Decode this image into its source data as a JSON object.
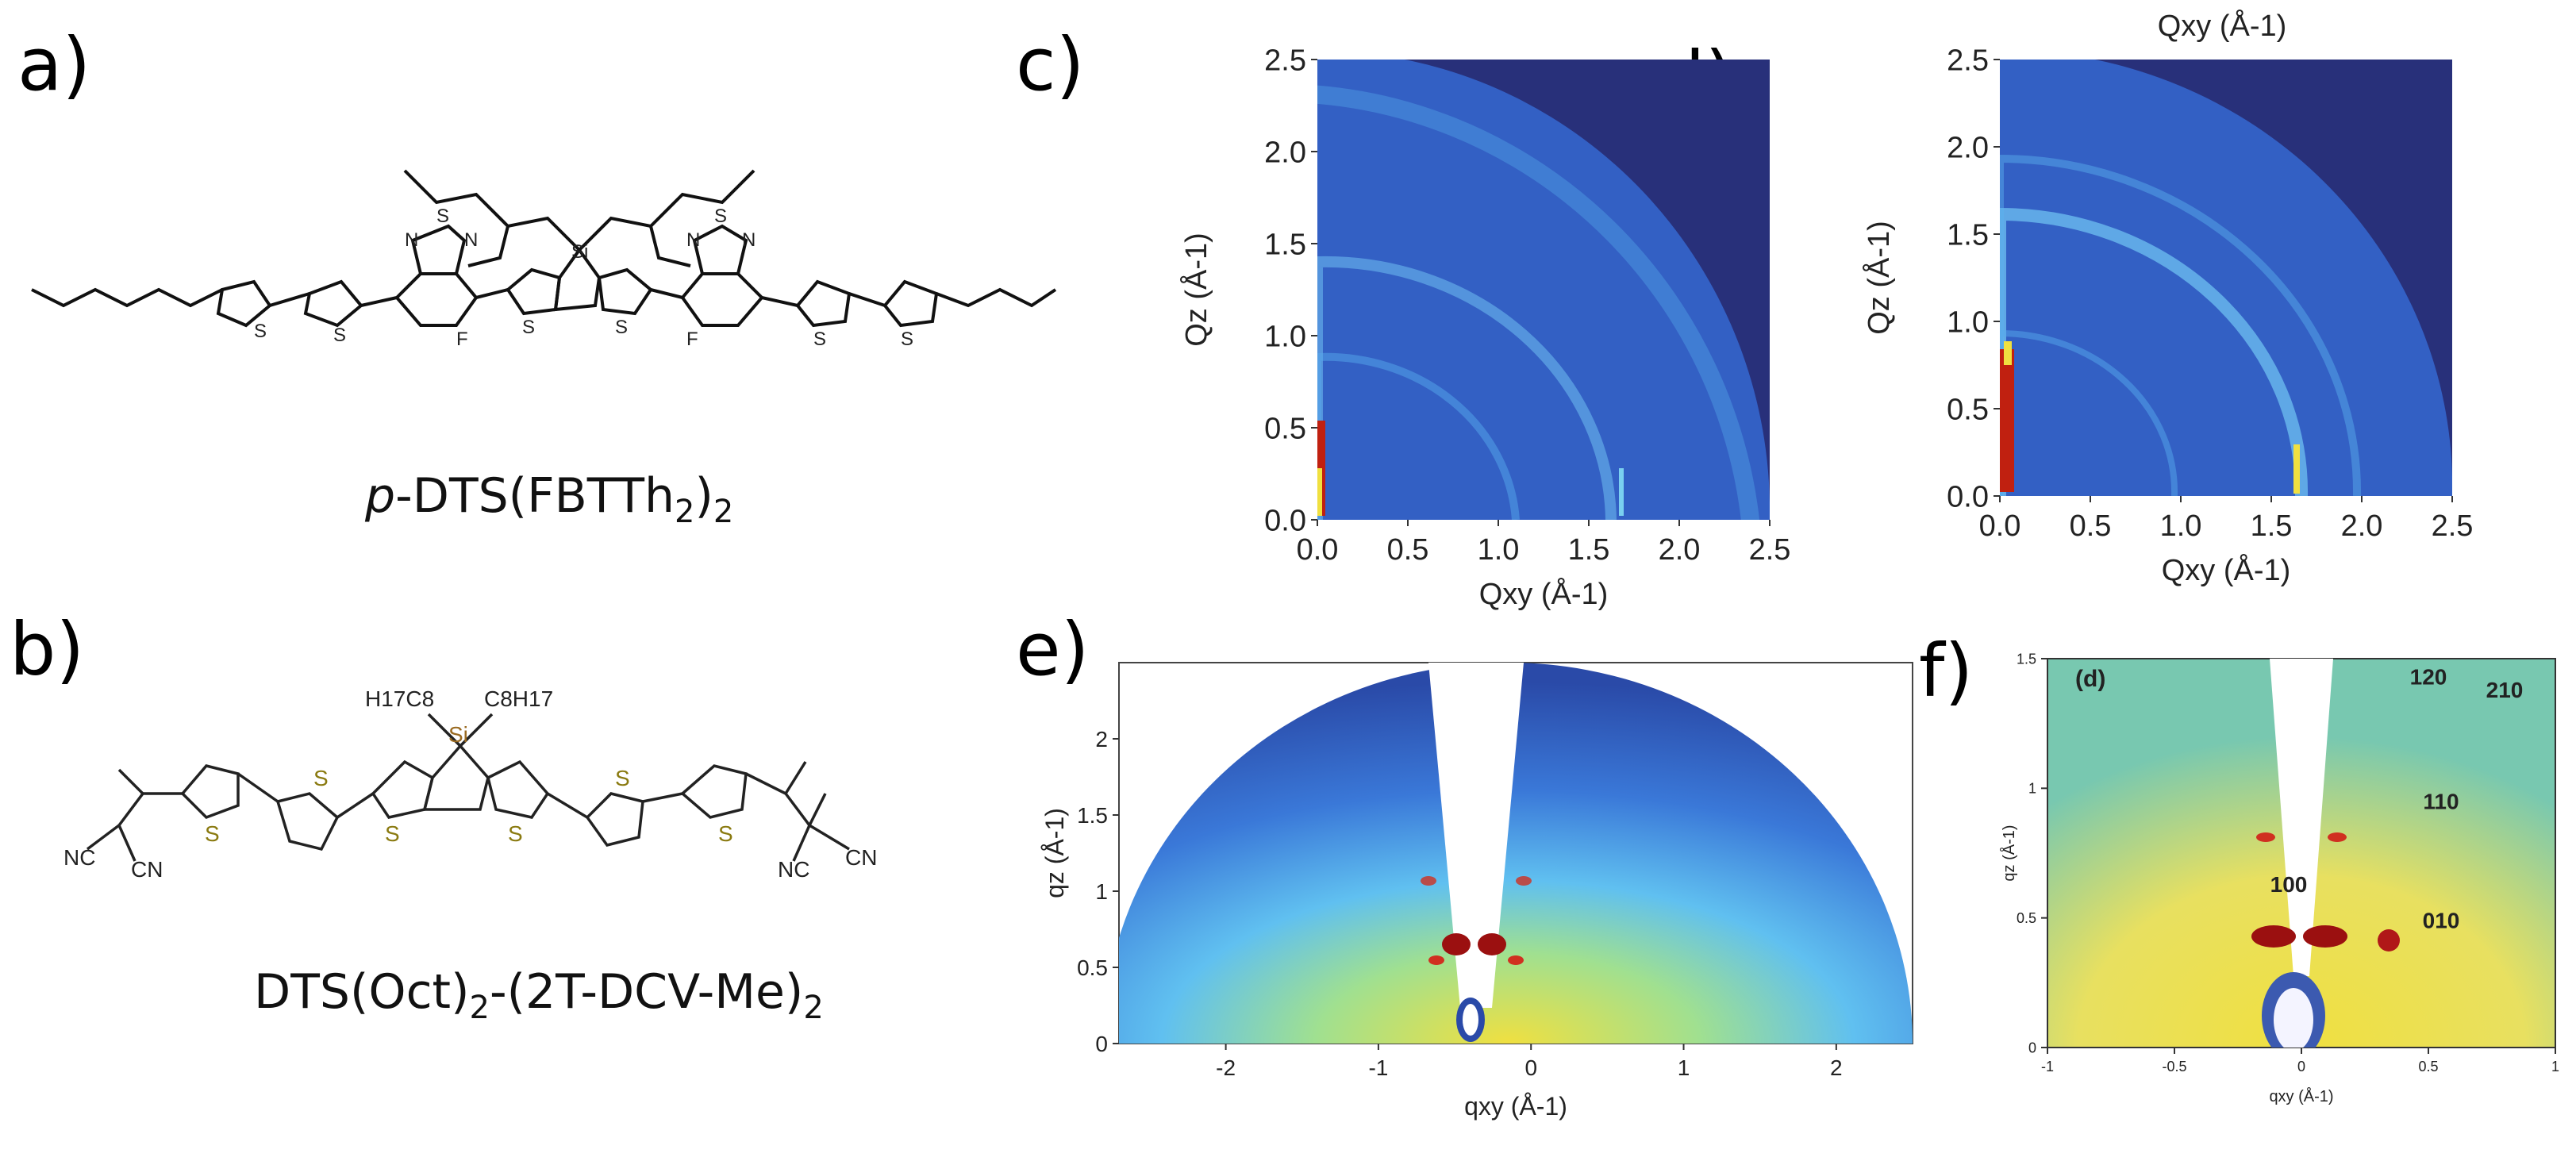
{
  "panels": {
    "a": {
      "letter": "a)",
      "name_prefix": "p",
      "name_rest": "-DTS(FBTTh",
      "name_sub1": "2",
      "name_close": ")",
      "name_sub2": "2",
      "atoms": {
        "s": "S",
        "n": "N",
        "f": "F",
        "si": "Si"
      }
    },
    "b": {
      "letter": "b)",
      "name_main": "DTS(Oct)",
      "name_sub1": "2",
      "name_mid": "-(2T-DCV-Me)",
      "name_sub2": "2",
      "atoms": {
        "s": "S",
        "si": "Si",
        "cn": "CN",
        "nc": "NC",
        "h17c8": "H17C8",
        "c8h17": "C8H17"
      }
    },
    "c": {
      "letter": "c)"
    },
    "d": {
      "letter": "d)"
    },
    "e": {
      "letter": "e)"
    },
    "f": {
      "letter": "f)",
      "inset_label": "(d)"
    }
  },
  "colors": {
    "bg_dark": "#28307a",
    "bg_mid": "#3463c8",
    "ring": "#5ab4f0",
    "hot": "#9b1010",
    "yellow": "#f0e040",
    "teal": "#78c8b0"
  },
  "chart_data": [
    {
      "id": "c",
      "type": "heatmap",
      "xlabel": "Qxy (Å-1)",
      "ylabel": "Qz (Å-1)",
      "xlim": [
        0.0,
        2.5
      ],
      "ylim": [
        0.0,
        2.5
      ],
      "xticks": [
        "0.0",
        "0.5",
        "1.0",
        "1.5",
        "2.0",
        "2.5"
      ],
      "yticks": [
        "0.0",
        "0.5",
        "1.0",
        "1.5",
        "2.0",
        "2.5"
      ]
    },
    {
      "id": "d",
      "type": "heatmap",
      "top_label": "Qxy (Å-1)",
      "xlabel": "Qxy (Å-1)",
      "ylabel": "Qz (Å-1)",
      "xlim": [
        0.0,
        2.5
      ],
      "ylim": [
        0.0,
        2.5
      ],
      "xticks": [
        "0.0",
        "0.5",
        "1.0",
        "1.5",
        "2.0",
        "2.5"
      ],
      "yticks": [
        "0.0",
        "0.5",
        "1.0",
        "1.5",
        "2.0",
        "2.5"
      ]
    },
    {
      "id": "e",
      "type": "heatmap",
      "xlabel": "qxy (Å-1)",
      "ylabel": "qz (Å-1)",
      "xlim": [
        -2.7,
        2.5
      ],
      "ylim": [
        0,
        2.5
      ],
      "xticks": [
        "-2",
        "-1",
        "0",
        "1",
        "2"
      ],
      "yticks": [
        "0",
        "0.5",
        "1",
        "1.5",
        "2"
      ]
    },
    {
      "id": "f",
      "type": "heatmap",
      "xlabel": "qxy (Å-1)",
      "ylabel": "qz (Å-1)",
      "xlim": [
        -1,
        1
      ],
      "ylim": [
        0,
        1.5
      ],
      "xticks": [
        "-1",
        "-0.5",
        "0",
        "0.5",
        "1"
      ],
      "yticks": [
        "0",
        "0.5",
        "1",
        "1.5"
      ],
      "annotations": [
        "100",
        "010",
        "110",
        "120",
        "210"
      ]
    }
  ]
}
